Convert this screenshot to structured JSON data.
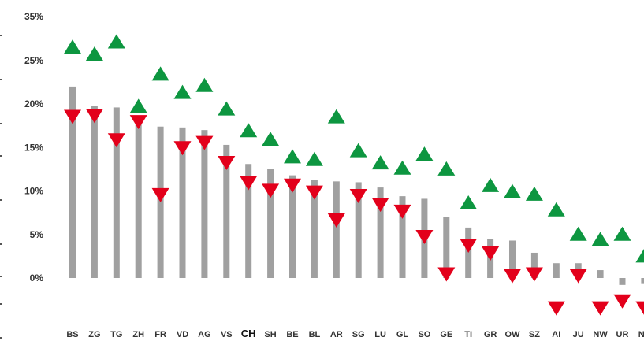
{
  "chart_data": {
    "type": "bar",
    "categories": [
      "BS",
      "ZG",
      "TG",
      "ZH",
      "FR",
      "VD",
      "AG",
      "VS",
      "CH",
      "SH",
      "BE",
      "BL",
      "AR",
      "SG",
      "LU",
      "GL",
      "SO",
      "GE",
      "TI",
      "GR",
      "OW",
      "SZ",
      "AI",
      "JU",
      "NW",
      "UR",
      "NE"
    ],
    "highlight_category": "CH",
    "y_ticks": [
      "35%",
      "25%",
      "20%",
      "15%",
      "10%",
      "5%",
      "0%"
    ],
    "y_tick_values": [
      35,
      25,
      20,
      15,
      10,
      5,
      0
    ],
    "ylim": [
      -6,
      36
    ],
    "grid": false,
    "series": [
      {
        "values": [
          22.0,
          19.8,
          19.6,
          18.4,
          17.4,
          17.3,
          17.0,
          15.3,
          13.1,
          12.5,
          11.8,
          11.3,
          11.1,
          11.0,
          10.4,
          9.4,
          9.1,
          7.0,
          5.8,
          4.5,
          4.3,
          2.9,
          1.7,
          1.7,
          0.9,
          -0.8,
          -0.6
        ]
      },
      {
        "values": [
          26.5,
          25.7,
          27.1,
          19.7,
          23.4,
          21.3,
          22.1,
          19.4,
          16.9,
          15.9,
          13.9,
          13.6,
          18.5,
          14.6,
          13.2,
          12.6,
          14.2,
          12.5,
          8.6,
          10.6,
          9.9,
          9.6,
          7.8,
          5.0,
          4.4,
          5.0,
          2.5
        ]
      },
      {
        "values": [
          18.6,
          18.7,
          15.9,
          18.0,
          9.6,
          15.0,
          15.6,
          13.3,
          11.0,
          10.1,
          10.7,
          9.9,
          6.7,
          9.5,
          8.5,
          7.7,
          4.8,
          0.5,
          3.8,
          2.9,
          0.3,
          0.5,
          -3.4,
          0.3,
          -3.4,
          -2.6,
          -3.4
        ]
      }
    ],
    "colors": {
      "bars": "#a0a0a0",
      "up_marker": "#0d9640",
      "down_marker": "#e3001b",
      "text": "#333333"
    }
  }
}
